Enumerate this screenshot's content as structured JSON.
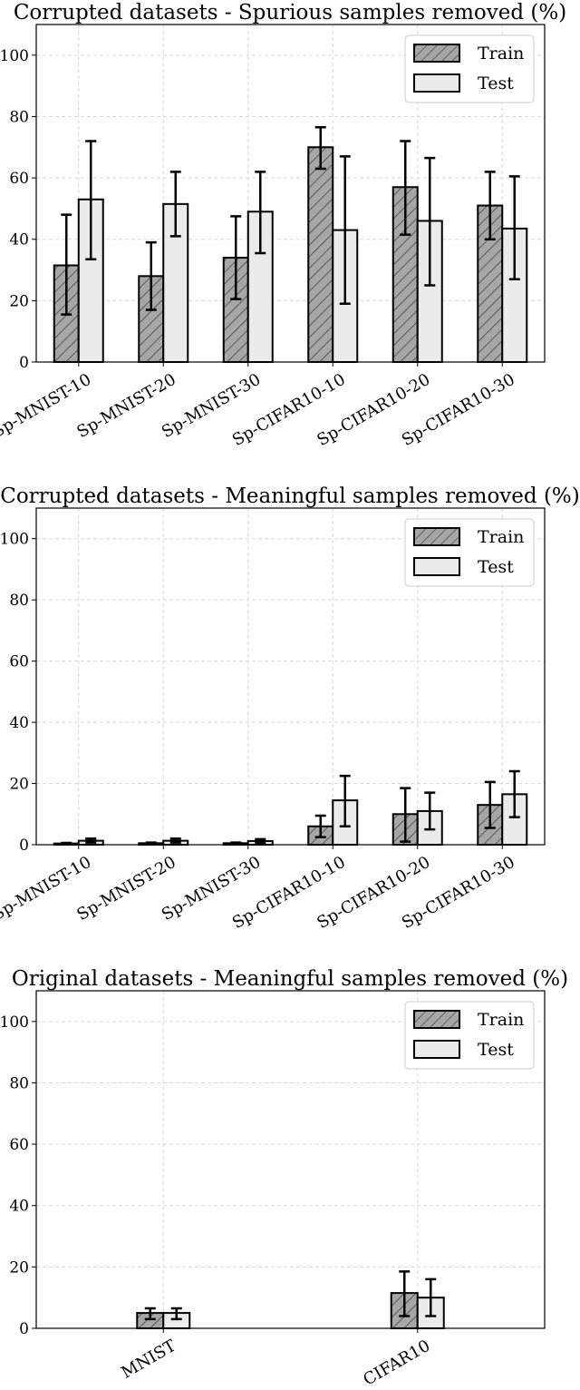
{
  "colors": {
    "train_fill": "#a6a6a6",
    "test_fill": "#ebebeb",
    "hatch": "#444444",
    "grid": "#d9d9d9"
  },
  "chart_data": [
    {
      "type": "bar",
      "title": "Corrupted datasets - Spurious samples removed (%)",
      "categories": [
        "Sp-MNIST-10",
        "Sp-MNIST-20",
        "Sp-MNIST-30",
        "Sp-CIFAR10-10",
        "Sp-CIFAR10-20",
        "Sp-CIFAR10-30"
      ],
      "series": [
        {
          "name": "Train",
          "values": [
            31.5,
            28,
            34,
            70,
            57,
            51
          ],
          "err_low": [
            15.5,
            17,
            20.5,
            63,
            41.5,
            40
          ],
          "err_high": [
            48,
            39,
            47.5,
            76.5,
            72,
            62
          ]
        },
        {
          "name": "Test",
          "values": [
            53,
            51.5,
            49,
            43,
            46,
            43.5
          ],
          "err_low": [
            33.5,
            41,
            35.5,
            19,
            25,
            27
          ],
          "err_high": [
            72,
            62,
            62,
            67,
            66.5,
            60.5
          ]
        }
      ],
      "ylim": [
        0,
        110
      ],
      "yticks": [
        0,
        20,
        40,
        60,
        80,
        100
      ],
      "grid": true,
      "legend": "top-right",
      "xlabel": "",
      "ylabel": ""
    },
    {
      "type": "bar",
      "title": "Corrupted datasets - Meaningful samples removed (%)",
      "categories": [
        "Sp-MNIST-10",
        "Sp-MNIST-20",
        "Sp-MNIST-30",
        "Sp-CIFAR10-10",
        "Sp-CIFAR10-20",
        "Sp-CIFAR10-30"
      ],
      "series": [
        {
          "name": "Train",
          "values": [
            0.4,
            0.5,
            0.5,
            6,
            10,
            13
          ],
          "err_low": [
            0.2,
            0.3,
            0.3,
            2.5,
            1,
            5.5
          ],
          "err_high": [
            0.6,
            0.7,
            0.7,
            9.5,
            18.5,
            20.5
          ]
        },
        {
          "name": "Test",
          "values": [
            1.3,
            1.3,
            1.2,
            14.5,
            11,
            16.5
          ],
          "err_low": [
            0.7,
            0.7,
            0.6,
            6,
            5,
            9
          ],
          "err_high": [
            2,
            2,
            1.8,
            22.5,
            17,
            24
          ]
        }
      ],
      "ylim": [
        0,
        110
      ],
      "yticks": [
        0,
        20,
        40,
        60,
        80,
        100
      ],
      "grid": true,
      "legend": "top-right",
      "xlabel": "",
      "ylabel": ""
    },
    {
      "type": "bar",
      "title": "Original datasets - Meaningful samples removed (%)",
      "categories": [
        "MNIST",
        "CIFAR10"
      ],
      "series": [
        {
          "name": "Train",
          "values": [
            5,
            11.5
          ],
          "err_low": [
            3,
            4
          ],
          "err_high": [
            6.5,
            18.5
          ]
        },
        {
          "name": "Test",
          "values": [
            5,
            10
          ],
          "err_low": [
            3,
            4
          ],
          "err_high": [
            6.5,
            16
          ]
        }
      ],
      "ylim": [
        0,
        110
      ],
      "yticks": [
        0,
        20,
        40,
        60,
        80,
        100
      ],
      "grid": true,
      "legend": "top-right",
      "xlabel": "",
      "ylabel": ""
    }
  ]
}
